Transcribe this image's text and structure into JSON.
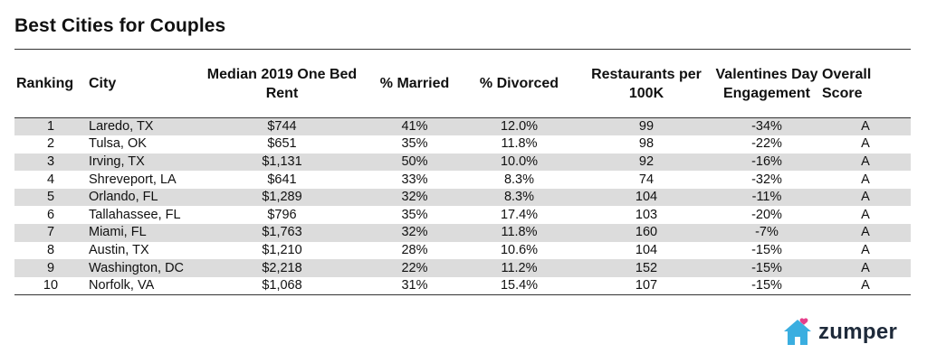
{
  "title": "Best Cities for Couples",
  "columns": [
    {
      "key": "ranking",
      "label": "Ranking"
    },
    {
      "key": "city",
      "label": "City"
    },
    {
      "key": "rent",
      "label": "Median 2019 One Bed Rent"
    },
    {
      "key": "married",
      "label": "% Married"
    },
    {
      "key": "divorced",
      "label": "% Divorced"
    },
    {
      "key": "restaurants",
      "label": "Restaurants per 100K"
    },
    {
      "key": "valentines",
      "label": "Valentines Day Engagement"
    },
    {
      "key": "score",
      "label": "Overall Score"
    }
  ],
  "rows": [
    {
      "ranking": "1",
      "city": "Laredo, TX",
      "rent": "$744",
      "married": "41%",
      "divorced": "12.0%",
      "restaurants": "99",
      "valentines": "-34%",
      "score": "A"
    },
    {
      "ranking": "2",
      "city": "Tulsa, OK",
      "rent": "$651",
      "married": "35%",
      "divorced": "11.8%",
      "restaurants": "98",
      "valentines": "-22%",
      "score": "A"
    },
    {
      "ranking": "3",
      "city": "Irving, TX",
      "rent": "$1,131",
      "married": "50%",
      "divorced": "10.0%",
      "restaurants": "92",
      "valentines": "-16%",
      "score": "A"
    },
    {
      "ranking": "4",
      "city": "Shreveport, LA",
      "rent": "$641",
      "married": "33%",
      "divorced": "8.3%",
      "restaurants": "74",
      "valentines": "-32%",
      "score": "A"
    },
    {
      "ranking": "5",
      "city": "Orlando, FL",
      "rent": "$1,289",
      "married": "32%",
      "divorced": "8.3%",
      "restaurants": "104",
      "valentines": "-11%",
      "score": "A"
    },
    {
      "ranking": "6",
      "city": "Tallahassee, FL",
      "rent": "$796",
      "married": "35%",
      "divorced": "17.4%",
      "restaurants": "103",
      "valentines": "-20%",
      "score": "A"
    },
    {
      "ranking": "7",
      "city": "Miami, FL",
      "rent": "$1,763",
      "married": "32%",
      "divorced": "11.8%",
      "restaurants": "160",
      "valentines": "-7%",
      "score": "A"
    },
    {
      "ranking": "8",
      "city": "Austin, TX",
      "rent": "$1,210",
      "married": "28%",
      "divorced": "10.6%",
      "restaurants": "104",
      "valentines": "-15%",
      "score": "A"
    },
    {
      "ranking": "9",
      "city": "Washington, DC",
      "rent": "$2,218",
      "married": "22%",
      "divorced": "11.2%",
      "restaurants": "152",
      "valentines": "-15%",
      "score": "A"
    },
    {
      "ranking": "10",
      "city": "Norfolk, VA",
      "rent": "$1,068",
      "married": "31%",
      "divorced": "15.4%",
      "restaurants": "107",
      "valentines": "-15%",
      "score": "A"
    }
  ],
  "logo": {
    "text": "zumper",
    "icon": "house-with-heart-icon",
    "color": "#3aaee0",
    "heart_color": "#e63f8b"
  },
  "colors": {
    "stripe": "#dcdcdc",
    "text": "#111111"
  }
}
